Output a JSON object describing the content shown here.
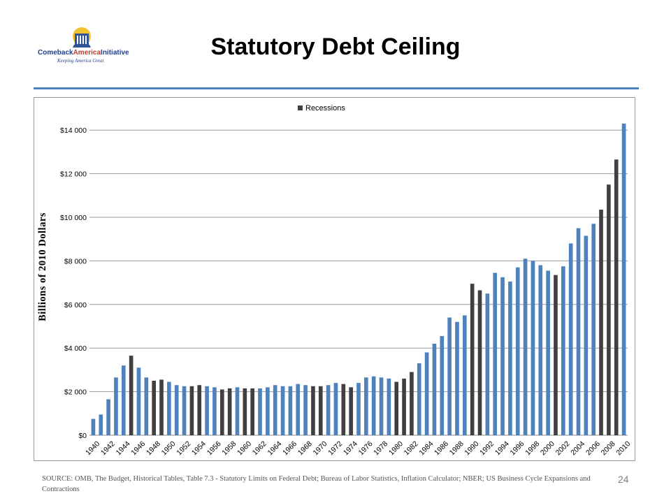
{
  "slide": {
    "title": "Statutory Debt Ceiling",
    "source": "SOURCE: OMB, The Budget, Historical Tables, Table 7.3 - Statutory Limits on Federal Debt; Bureau of Labor Statistics, Inflation Calculator; NBER; US Business Cycle Expansions and Contractions",
    "page_number": "24"
  },
  "logo": {
    "name_part1": "Comeback",
    "name_part2": "America",
    "name_part3": "Initiative",
    "tagline": "Keeping America Great"
  },
  "colors": {
    "normal": "#4f81bd",
    "recession": "#404040",
    "rule": "#4f81bd"
  },
  "chart_data": {
    "type": "bar",
    "title": "",
    "xlabel": "",
    "ylabel": "Billions of 2010 Dollars",
    "ylim": [
      0,
      15000
    ],
    "yticks": [
      "$0",
      "$2 000",
      "$4 000",
      "$6 000",
      "$8 000",
      "$10 000",
      "$12 000",
      "$14 000"
    ],
    "ytick_values": [
      0,
      2000,
      4000,
      6000,
      8000,
      10000,
      12000,
      14000
    ],
    "grid": true,
    "legend": {
      "position": "top-center",
      "entries": [
        "Recessions"
      ]
    },
    "categories": [
      1940,
      1941,
      1942,
      1943,
      1944,
      1945,
      1946,
      1947,
      1948,
      1949,
      1950,
      1951,
      1952,
      1953,
      1954,
      1955,
      1956,
      1957,
      1958,
      1959,
      1960,
      1961,
      1962,
      1963,
      1964,
      1965,
      1966,
      1967,
      1968,
      1969,
      1970,
      1971,
      1972,
      1973,
      1974,
      1975,
      1976,
      1977,
      1978,
      1979,
      1980,
      1981,
      1982,
      1983,
      1984,
      1985,
      1986,
      1987,
      1988,
      1989,
      1990,
      1991,
      1992,
      1993,
      1994,
      1995,
      1996,
      1997,
      1998,
      1999,
      2000,
      2001,
      2002,
      2003,
      2004,
      2005,
      2006,
      2007,
      2008,
      2009,
      2010
    ],
    "xtick_labels": [
      "1940",
      "1942",
      "1944",
      "1946",
      "1948",
      "1950",
      "1952",
      "1954",
      "1956",
      "1958",
      "1960",
      "1962",
      "1964",
      "1966",
      "1968",
      "1970",
      "1972",
      "1974",
      "1976",
      "1978",
      "1980",
      "1982",
      "1984",
      "1986",
      "1988",
      "1990",
      "1992",
      "1994",
      "1996",
      "1998",
      "2000",
      "2002",
      "2004",
      "2006",
      "2008",
      "2010"
    ],
    "values": [
      750,
      950,
      1650,
      2650,
      3200,
      3650,
      3100,
      2650,
      2500,
      2550,
      2450,
      2300,
      2250,
      2250,
      2300,
      2250,
      2200,
      2100,
      2150,
      2200,
      2150,
      2150,
      2150,
      2200,
      2300,
      2250,
      2250,
      2350,
      2300,
      2250,
      2250,
      2300,
      2400,
      2350,
      2200,
      2400,
      2650,
      2700,
      2650,
      2600,
      2450,
      2600,
      2900,
      3300,
      3800,
      4200,
      4550,
      5400,
      5200,
      5500,
      6950,
      6650,
      6500,
      7450,
      7250,
      7050,
      7700,
      8100,
      8000,
      7800,
      7550,
      7350,
      7750,
      8800,
      9500,
      9150,
      9700,
      10350,
      11500,
      12650,
      14300
    ],
    "recession": [
      false,
      false,
      false,
      false,
      false,
      true,
      false,
      false,
      true,
      true,
      false,
      false,
      false,
      true,
      true,
      false,
      false,
      true,
      true,
      false,
      true,
      true,
      false,
      false,
      false,
      false,
      false,
      false,
      false,
      true,
      true,
      false,
      false,
      true,
      true,
      false,
      false,
      false,
      false,
      false,
      true,
      true,
      true,
      false,
      false,
      false,
      false,
      false,
      false,
      false,
      true,
      true,
      false,
      false,
      false,
      false,
      false,
      false,
      false,
      false,
      false,
      true,
      false,
      false,
      false,
      false,
      false,
      true,
      true,
      true,
      false
    ]
  }
}
